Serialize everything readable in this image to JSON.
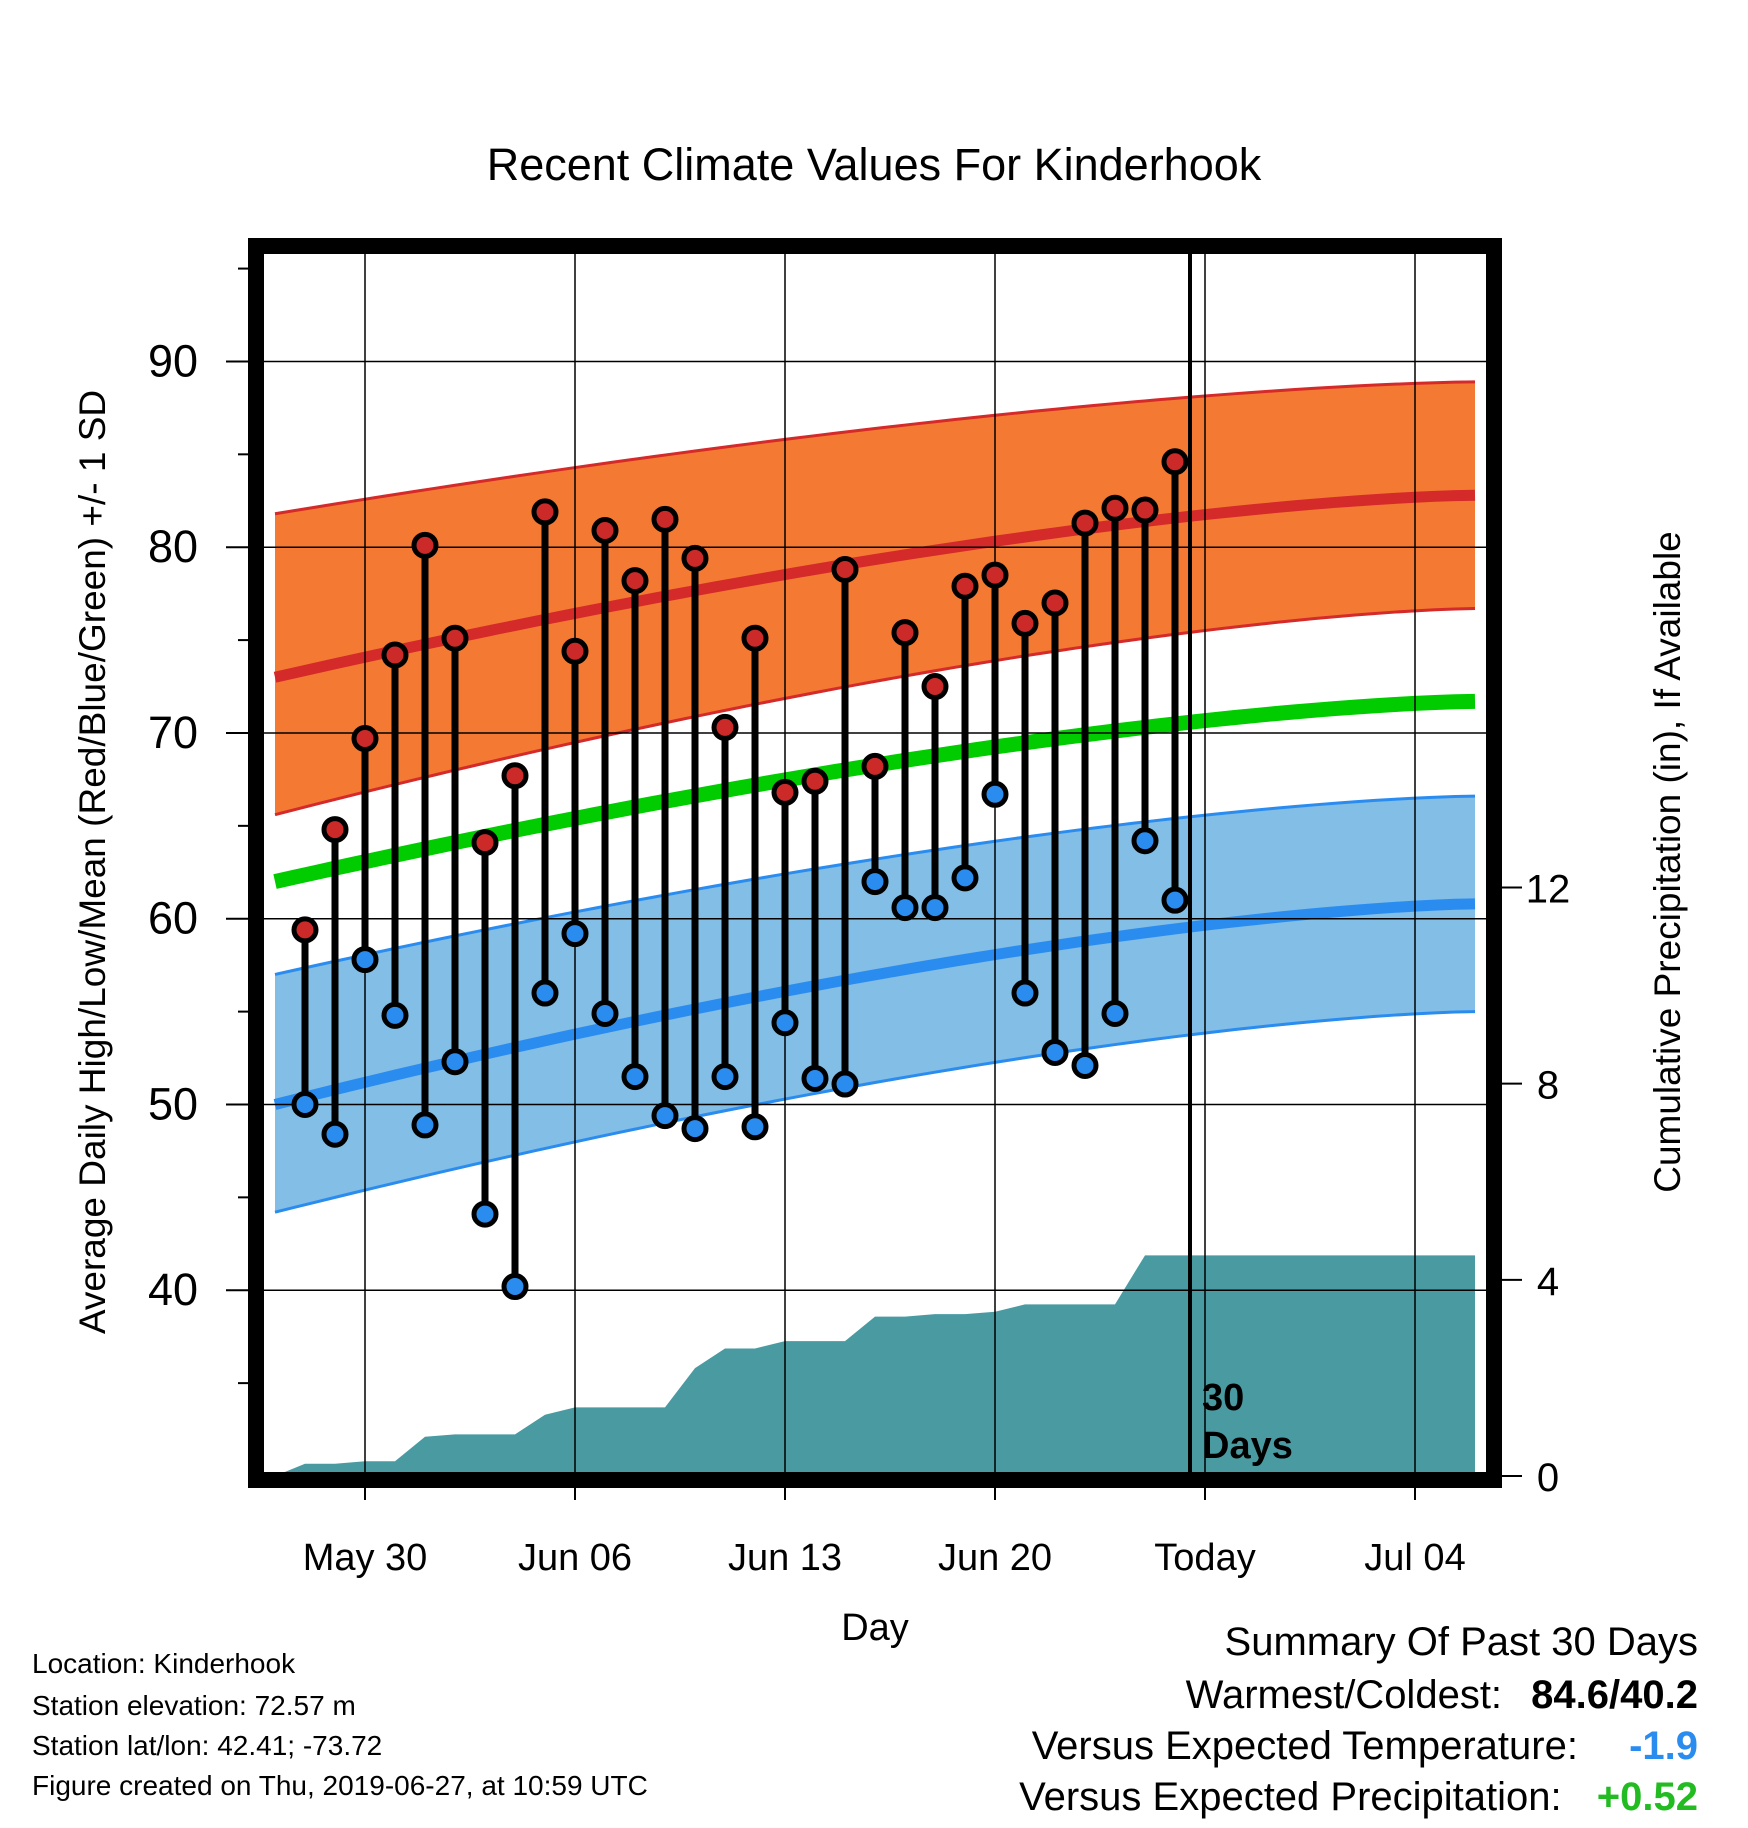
{
  "chart_data": {
    "type": "line",
    "title": "Recent Climate Values For Kinderhook",
    "xlabel": "Day",
    "ylabel_left": "Average Daily High/Low/Mean (Red/Blue/Green) +/- 1 SD",
    "ylabel_right": "Cumulative Precipitation (in), If Available",
    "x_tick_labels": [
      "May 30",
      "Jun 06",
      "Jun 13",
      "Jun 20",
      "Today",
      "Jul 04"
    ],
    "y_left_ticks": [
      "40",
      "50",
      "60",
      "70",
      "80",
      "90"
    ],
    "y_right_ticks": [
      "0",
      "4",
      "8",
      "12"
    ],
    "y_left_range": [
      30,
      96
    ],
    "y_right_range": [
      0,
      25
    ],
    "x_range": [
      -3.5,
      37.5
    ],
    "grid": true,
    "today_index": 31,
    "today_annotation": [
      "30",
      "Days"
    ],
    "normals": {
      "x": [
        -3,
        37
      ],
      "high_mean": [
        73.0,
        82.8
      ],
      "high_upper": [
        81.8,
        88.9
      ],
      "high_lower": [
        65.6,
        76.7
      ],
      "mean": [
        62.0,
        71.7
      ],
      "low_mean": [
        50.0,
        60.8
      ],
      "low_upper": [
        57.0,
        66.6
      ],
      "low_lower": [
        44.2,
        55.0
      ]
    },
    "days": [
      -2,
      -1,
      0,
      1,
      2,
      3,
      4,
      5,
      6,
      7,
      8,
      9,
      10,
      11,
      12,
      13,
      14,
      15,
      16,
      17,
      18,
      19,
      20,
      21,
      22,
      23,
      24,
      25,
      26,
      27,
      28
    ],
    "highs": [
      59.4,
      64.8,
      69.7,
      74.2,
      80.1,
      75.1,
      64.1,
      67.7,
      81.9,
      74.4,
      80.9,
      78.2,
      81.5,
      79.4,
      70.3,
      75.1,
      66.8,
      67.4,
      78.8,
      68.2,
      75.4,
      72.5,
      77.9,
      78.5,
      75.9,
      77.0,
      81.3,
      82.1,
      82.0,
      84.6
    ],
    "lows": [
      50.0,
      48.4,
      57.8,
      54.8,
      48.9,
      52.3,
      44.1,
      40.2,
      56.0,
      59.2,
      54.9,
      51.5,
      49.4,
      48.7,
      51.5,
      48.8,
      54.4,
      51.4,
      51.1,
      62.0,
      60.6,
      60.6,
      62.2,
      66.7,
      56.0,
      52.8,
      52.1,
      54.9,
      64.2,
      61.0
    ],
    "precip_x": [
      -3,
      -2,
      -1,
      0,
      1,
      2,
      3,
      4,
      5,
      6,
      7,
      8,
      9,
      10,
      11,
      12,
      13,
      14,
      15,
      16,
      17,
      18,
      19,
      20,
      21,
      22,
      23,
      24,
      25,
      26,
      27,
      28,
      29,
      30,
      31,
      32,
      33,
      34,
      35,
      36,
      37
    ],
    "precip_cum": [
      0.0,
      0.25,
      0.25,
      0.3,
      0.3,
      0.8,
      0.85,
      0.85,
      0.85,
      1.25,
      1.4,
      1.4,
      1.4,
      1.4,
      2.2,
      2.6,
      2.6,
      2.75,
      2.75,
      2.75,
      3.25,
      3.25,
      3.3,
      3.3,
      3.35,
      3.5,
      3.5,
      3.5,
      3.5,
      4.5,
      4.5,
      4.5,
      4.5,
      4.5,
      4.5,
      4.5,
      4.5,
      4.5,
      4.5,
      4.5,
      4.5
    ],
    "colors": {
      "high_band": "#f47933",
      "high_line": "#d42a2a",
      "low_band": "#82bee6",
      "low_line": "#2b8cf0",
      "mean_line": "#00cc00",
      "precip": "#4a9aa2",
      "high_dot": "#cc2929",
      "low_dot": "#2b8cf0"
    }
  },
  "info": {
    "location": "Location: Kinderhook",
    "elevation": "Station elevation: 72.57 m",
    "latlon": "Station lat/lon: 42.41; -73.72",
    "created": "Figure created on Thu, 2019-06-27, at 10:59 UTC"
  },
  "summary": {
    "heading": "Summary Of Past 30 Days",
    "warmest_label": "Warmest/Coldest:",
    "warmest_value": "84.6/40.2",
    "temp_label": "Versus Expected Temperature:",
    "temp_value": "-1.9",
    "temp_color": "#2b8cf0",
    "precip_label": "Versus Expected Precipitation:",
    "precip_value": "+0.52",
    "precip_color": "#22bb22"
  }
}
